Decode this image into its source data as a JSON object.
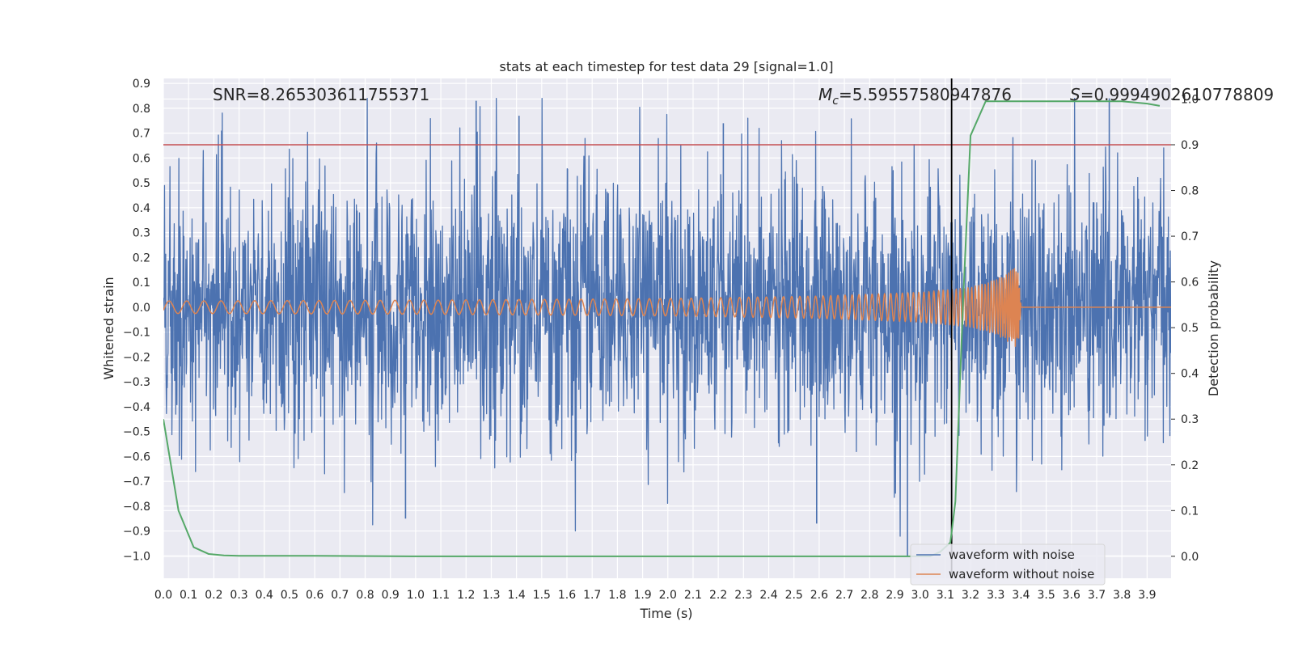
{
  "chart_data": {
    "type": "line",
    "title": "stats at each timestep for test data 29 [signal=1.0]",
    "xlabel": "Time (s)",
    "ylabel_left": "Whitened strain",
    "ylabel_right": "Detection probability",
    "xlim": [
      0.0,
      3.995
    ],
    "ylim_left": [
      -1.09,
      0.92
    ],
    "ylim_right": [
      -0.048,
      1.045
    ],
    "x_ticks": [
      "0.0",
      "0.1",
      "0.2",
      "0.3",
      "0.4",
      "0.5",
      "0.6",
      "0.7",
      "0.8",
      "0.9",
      "1.0",
      "1.1",
      "1.2",
      "1.3",
      "1.4",
      "1.5",
      "1.6",
      "1.7",
      "1.8",
      "1.9",
      "2.0",
      "2.1",
      "2.2",
      "2.3",
      "2.4",
      "2.5",
      "2.6",
      "2.7",
      "2.8",
      "2.9",
      "3.0",
      "3.1",
      "3.2",
      "3.3",
      "3.4",
      "3.5",
      "3.6",
      "3.7",
      "3.8",
      "3.9"
    ],
    "y_ticks_left": [
      "0.9",
      "0.8",
      "0.7",
      "0.6",
      "0.5",
      "0.4",
      "0.3",
      "0.2",
      "0.1",
      "0.0",
      "−0.1",
      "−0.2",
      "−0.3",
      "−0.4",
      "−0.5",
      "−0.6",
      "−0.7",
      "−0.8",
      "−0.9",
      "−1.0"
    ],
    "y_ticks_right": [
      "1.0",
      "0.9",
      "0.8",
      "0.7",
      "0.6",
      "0.5",
      "0.4",
      "0.3",
      "0.2",
      "0.1",
      "0.0"
    ],
    "annotations": {
      "snr": "SNR=8.265303611755371",
      "mc_symbol": "M",
      "mc_sub": "c",
      "mc_value": "=5.59557580947876",
      "s_symbol": "S",
      "s_value": "=0.9994902610778809"
    },
    "threshold_right": 0.9,
    "peak_time": 3.125,
    "series": [
      {
        "name": "waveform with noise",
        "color": "#4c72b0",
        "noise_sigma": 0.26,
        "approx_peaks": [
          0.83,
          0.77,
          0.74,
          -0.85,
          -0.87,
          -1.0
        ]
      },
      {
        "name": "waveform without noise",
        "color": "#dd8452",
        "envelope": [
          [
            0.0,
            0.025
          ],
          [
            1.0,
            0.028
          ],
          [
            2.0,
            0.035
          ],
          [
            2.6,
            0.045
          ],
          [
            3.0,
            0.06
          ],
          [
            3.2,
            0.08
          ],
          [
            3.3,
            0.11
          ],
          [
            3.35,
            0.14
          ],
          [
            3.39,
            0.17
          ],
          [
            3.4,
            0.0
          ]
        ]
      },
      {
        "name": "detection probability",
        "color": "#55a868",
        "x": [
          0.0,
          0.06,
          0.12,
          0.18,
          0.24,
          0.3,
          0.6,
          1.0,
          2.0,
          2.96,
          3.04,
          3.08,
          3.12,
          3.14,
          3.17,
          3.2,
          3.26,
          3.5,
          3.8,
          3.9,
          3.95
        ],
        "y": [
          0.3,
          0.1,
          0.02,
          0.005,
          0.002,
          0.001,
          0.001,
          0.0,
          0.0,
          0.0,
          0.0,
          0.01,
          0.03,
          0.12,
          0.55,
          0.92,
          0.995,
          0.995,
          0.995,
          0.99,
          0.985
        ]
      }
    ],
    "threshold_color": "#c44e52",
    "peak_line_color": "#000000",
    "legend": {
      "placement": "lower-right",
      "entries": [
        "waveform with noise",
        "waveform without noise"
      ]
    }
  }
}
